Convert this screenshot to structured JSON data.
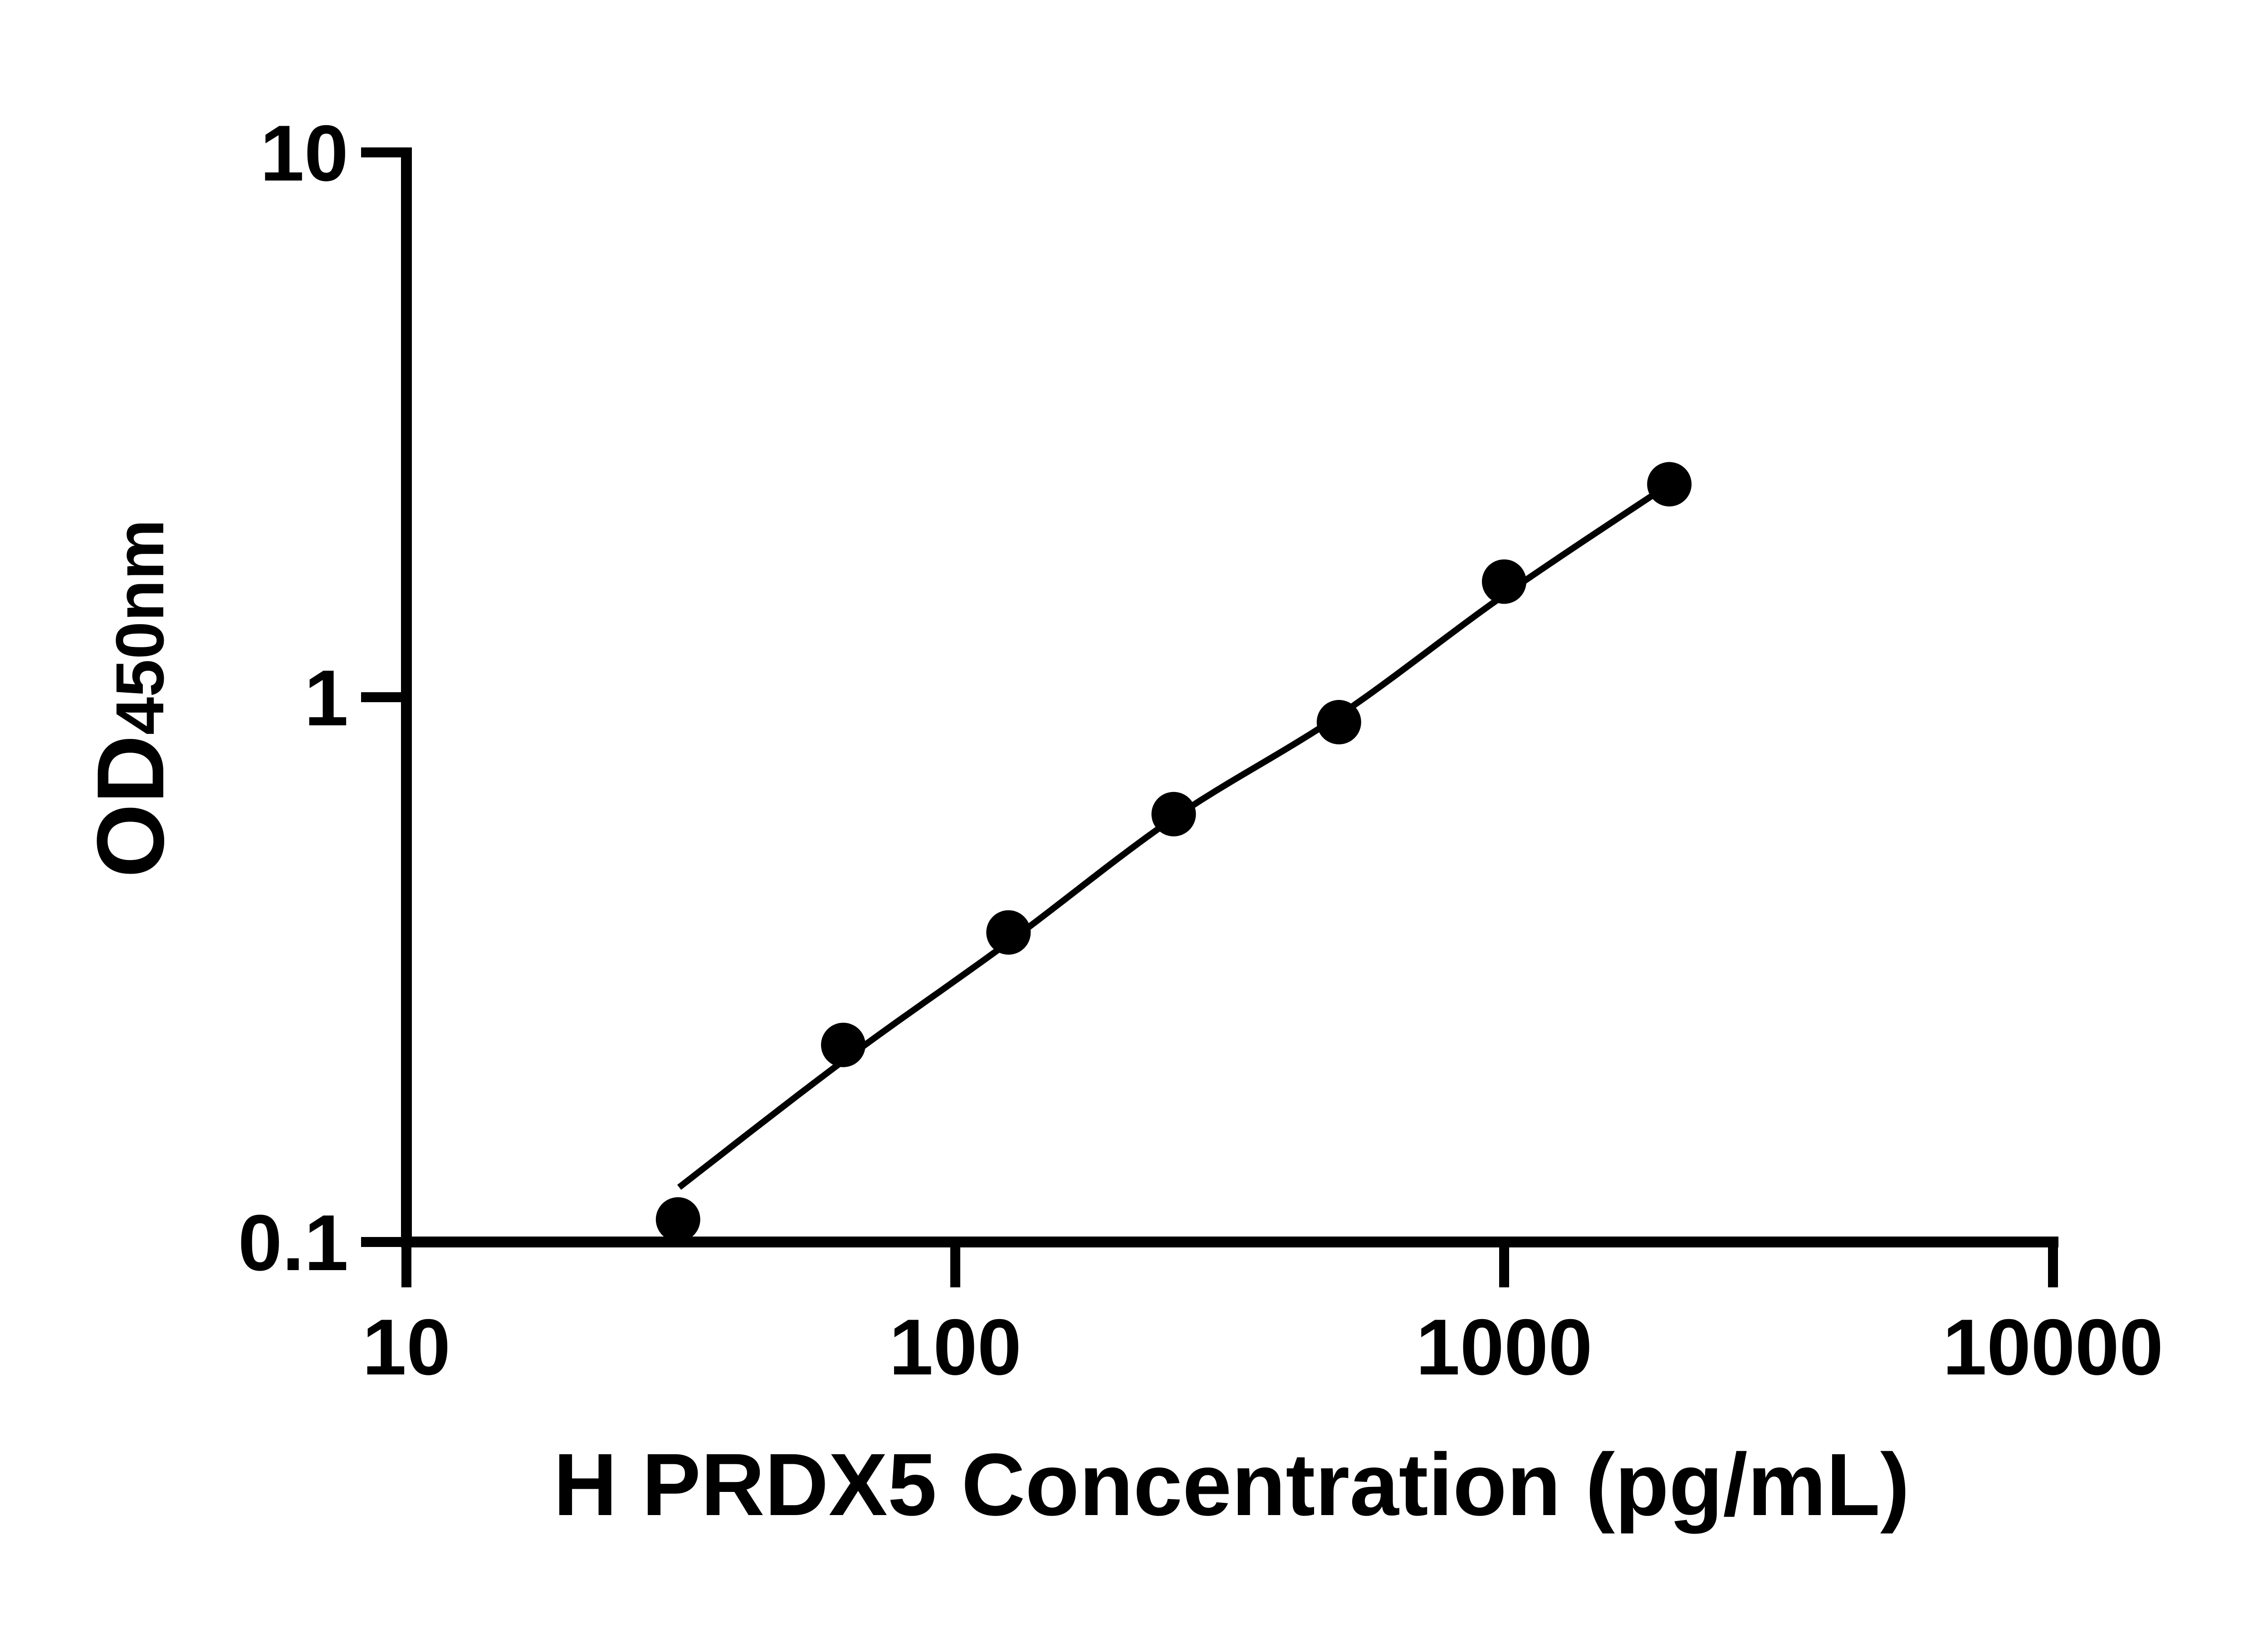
{
  "figure": {
    "background_color": "#ffffff",
    "ink_color": "#000000"
  },
  "chart_data": {
    "type": "scatter",
    "title": "",
    "xlabel": "H PRDX5 Concentration (pg/mL)",
    "ylabel_main": "OD",
    "ylabel_sub": "450nm",
    "x_scale": "log",
    "y_scale": "log",
    "xlim": [
      10,
      10000
    ],
    "ylim": [
      0.1,
      10
    ],
    "x_ticks": [
      10,
      100,
      1000,
      10000
    ],
    "x_tick_labels": [
      "10",
      "100",
      "1000",
      "10000"
    ],
    "y_ticks": [
      10,
      1,
      0.1
    ],
    "y_tick_labels": [
      "10",
      "1",
      "0.1"
    ],
    "grid": "off",
    "legend": "none",
    "series": [
      {
        "name": "standard-curve-points",
        "marker": "filled-circle",
        "color": "#000000",
        "points": [
          [
            31.25,
            0.11
          ],
          [
            62.5,
            0.23
          ],
          [
            125,
            0.37
          ],
          [
            250,
            0.61
          ],
          [
            500,
            0.9
          ],
          [
            1000,
            1.63
          ],
          [
            2000,
            2.46
          ]
        ]
      }
    ],
    "fit_curve": {
      "name": "fitted-standard-curve",
      "color": "#000000",
      "anchors": [
        [
          31.4,
          0.126
        ],
        [
          62.5,
          0.215
        ],
        [
          125,
          0.355
        ],
        [
          250,
          0.6
        ],
        [
          500,
          0.925
        ],
        [
          1000,
          1.54
        ],
        [
          2000,
          2.46
        ]
      ]
    }
  }
}
